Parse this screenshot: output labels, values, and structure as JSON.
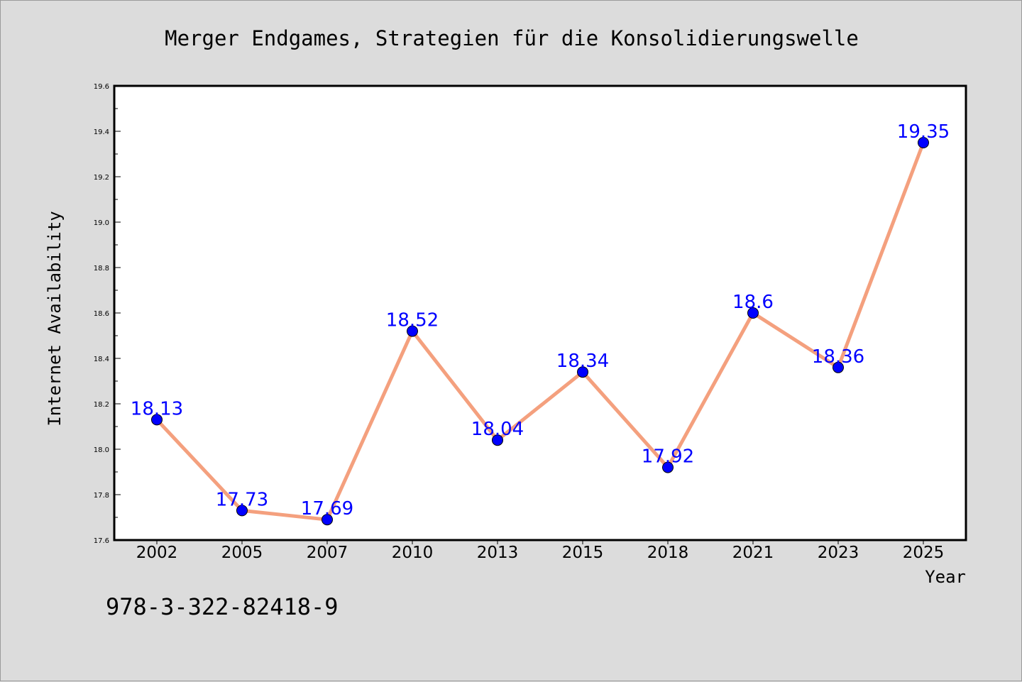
{
  "chart_data": {
    "type": "line",
    "title": "Merger Endgames, Strategien für die Konsolidierungswelle",
    "xlabel": "Year",
    "ylabel": "Internet Availability",
    "categories": [
      "2002",
      "2005",
      "2007",
      "2010",
      "2013",
      "2015",
      "2018",
      "2021",
      "2023",
      "2025"
    ],
    "values": [
      18.13,
      17.73,
      17.69,
      18.52,
      18.04,
      18.34,
      17.92,
      18.6,
      18.36,
      19.35
    ],
    "data_labels": [
      "18.13",
      "17.73",
      "17.69",
      "18.52",
      "18.04",
      "18.34",
      "17.92",
      "18.6",
      "18.36",
      "19.35"
    ],
    "ylim": [
      17.6,
      19.6
    ],
    "yticks": [
      "17.6",
      "17.8",
      "18.0",
      "18.2",
      "18.4",
      "18.6",
      "18.8",
      "19.0",
      "19.2",
      "19.4",
      "19.6"
    ],
    "grid": false,
    "legend": "none",
    "colors": {
      "line": "#f4a07e",
      "marker": "#0000ff",
      "labels": "#0000ff",
      "background": "#dcdcdc",
      "plot_background": "#ffffff"
    }
  },
  "annotation": {
    "isbn": "978-3-322-82418-9"
  }
}
